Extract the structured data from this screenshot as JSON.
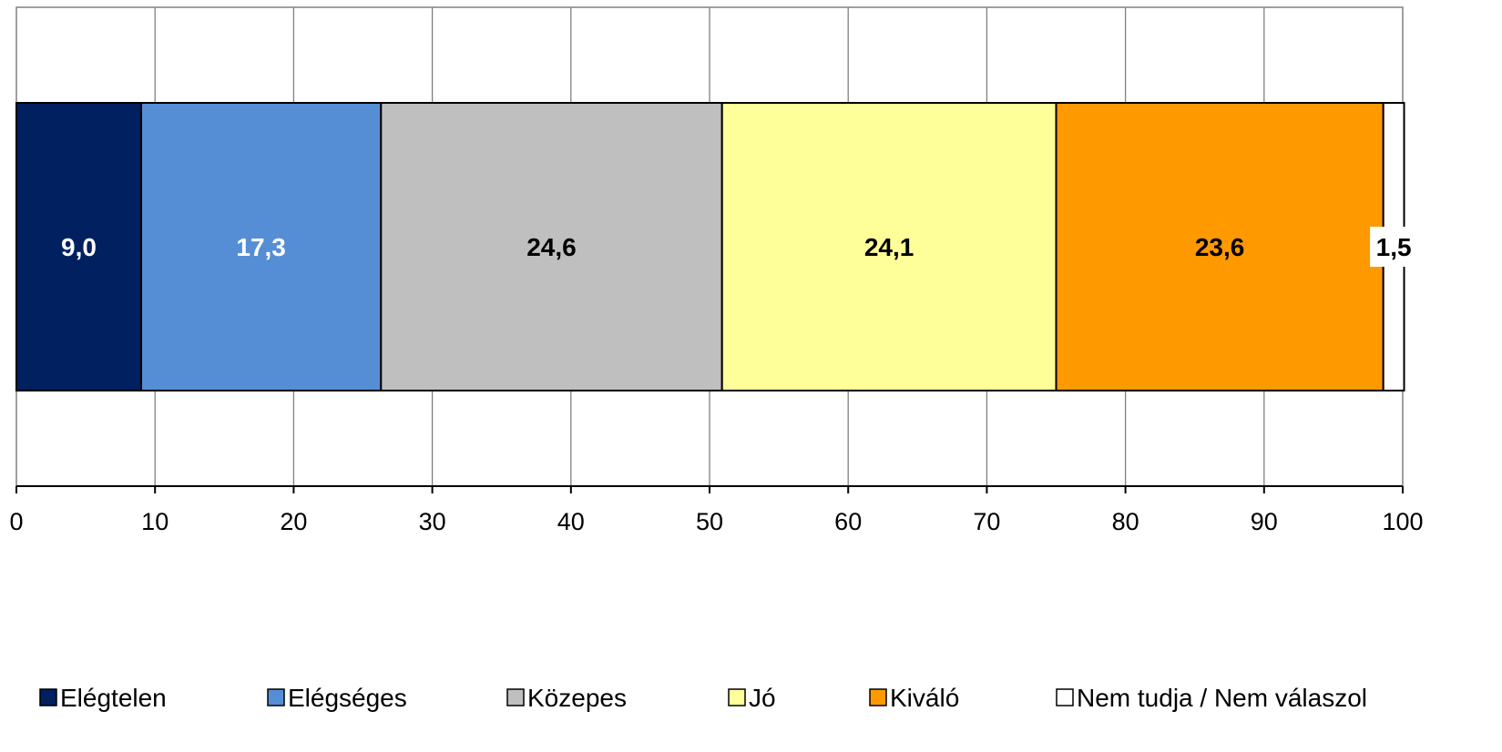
{
  "chart_data": {
    "type": "bar",
    "orientation": "horizontal",
    "stacked": true,
    "xlim": [
      0,
      100
    ],
    "x_ticks": [
      "0",
      "10",
      "20",
      "30",
      "40",
      "50",
      "60",
      "70",
      "80",
      "90",
      "100"
    ],
    "grid": true,
    "legend_position": "bottom",
    "series": [
      {
        "name": "Elégtelen",
        "value": 9.0,
        "label": "9,0",
        "color": "#002060",
        "label_color": "#ffffff"
      },
      {
        "name": "Elégséges",
        "value": 17.3,
        "label": "17,3",
        "color": "#558ED5",
        "label_color": "#ffffff"
      },
      {
        "name": "Közepes",
        "value": 24.6,
        "label": "24,6",
        "color": "#BFBFBF",
        "label_color": "#000000"
      },
      {
        "name": "Jó",
        "value": 24.1,
        "label": "24,1",
        "color": "#FFFF99",
        "label_color": "#000000"
      },
      {
        "name": "Kiváló",
        "value": 23.6,
        "label": "23,6",
        "color": "#FF9900",
        "label_color": "#000000"
      },
      {
        "name": "Nem tudja / Nem válaszol",
        "value": 1.5,
        "label": "1,5",
        "color": "#FFFFFF",
        "label_color": "#000000"
      }
    ]
  }
}
